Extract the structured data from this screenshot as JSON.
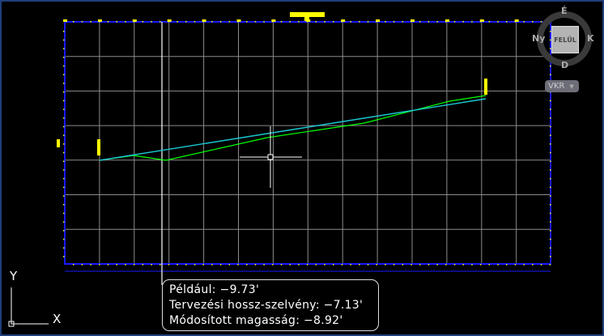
{
  "viewcube": {
    "top_face": "FELŰL",
    "north": "É",
    "south": "D",
    "east": "K",
    "west": "Ny"
  },
  "coordinate_system_menu": {
    "label": "VKR",
    "icon": "triangle-down-icon"
  },
  "ucs_icon": {
    "x_label": "X",
    "y_label": "Y"
  },
  "tooltip": {
    "lines": [
      "Például: −9.73'",
      "Tervezési hossz-szelvény: −7.13'",
      "Módosított magasság: −8.92'"
    ]
  },
  "colors": {
    "background": "#000000",
    "grid": "#8c8c8c",
    "border": "#1a1aff",
    "existing_profile": "#00ff00",
    "design_profile": "#19c8d2",
    "labels": "#ffff00"
  }
}
